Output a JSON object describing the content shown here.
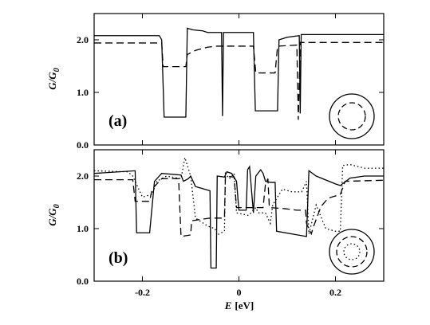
{
  "colors": {
    "ink": "#000000",
    "background": "#ffffff"
  },
  "chart_data": [
    {
      "type": "line",
      "panel_label": "(a)",
      "ylabel_main": "G/G",
      "ylabel_sub": "0",
      "xlim": [
        -0.3,
        0.3
      ],
      "ylim": [
        0.0,
        2.5
      ],
      "yticks": [
        0.0,
        1.0,
        2.0
      ],
      "ytick_labels": [
        "0.0",
        "1.0",
        "2.0"
      ],
      "xticks": [
        -0.2,
        0.0,
        0.2
      ],
      "xtick_labels": [],
      "inset": "two-concentric-shells",
      "series": [
        {
          "style": "solid",
          "points": [
            [
              -0.3,
              2.08
            ],
            [
              -0.165,
              2.08
            ],
            [
              -0.16,
              2.0
            ],
            [
              -0.155,
              0.53
            ],
            [
              -0.11,
              0.53
            ],
            [
              -0.107,
              2.22
            ],
            [
              -0.095,
              2.19
            ],
            [
              -0.075,
              2.17
            ],
            [
              -0.065,
              2.14
            ],
            [
              -0.04,
              2.14
            ],
            [
              -0.036,
              2.14
            ],
            [
              -0.034,
              0.55
            ],
            [
              -0.032,
              2.14
            ],
            [
              0.03,
              2.14
            ],
            [
              0.034,
              0.65
            ],
            [
              0.08,
              0.65
            ],
            [
              0.083,
              2.0
            ],
            [
              0.1,
              2.05
            ],
            [
              0.125,
              2.08
            ],
            [
              0.127,
              0.6
            ],
            [
              0.129,
              2.1
            ],
            [
              0.15,
              2.1
            ],
            [
              0.3,
              2.1
            ]
          ]
        },
        {
          "style": "dashed",
          "points": [
            [
              -0.3,
              1.94
            ],
            [
              -0.16,
              1.94
            ],
            [
              -0.157,
              1.49
            ],
            [
              -0.11,
              1.49
            ],
            [
              -0.107,
              1.72
            ],
            [
              -0.09,
              1.8
            ],
            [
              -0.065,
              1.86
            ],
            [
              -0.045,
              1.88
            ],
            [
              0.03,
              1.88
            ],
            [
              0.035,
              1.37
            ],
            [
              0.075,
              1.37
            ],
            [
              0.08,
              1.88
            ],
            [
              0.12,
              1.9
            ],
            [
              0.123,
              0.48
            ],
            [
              0.127,
              1.95
            ],
            [
              0.3,
              1.95
            ]
          ]
        }
      ]
    },
    {
      "type": "line",
      "panel_label": "(b)",
      "ylabel_main": "G/G",
      "ylabel_sub": "0",
      "xlabel_main": "E",
      "xlabel_unit": "[eV]",
      "xlim": [
        -0.3,
        0.3
      ],
      "ylim": [
        0.0,
        2.5
      ],
      "yticks": [
        0.0,
        1.0,
        2.0
      ],
      "ytick_labels": [
        "0.0",
        "1.0",
        "2.0"
      ],
      "xticks": [
        -0.2,
        0.0,
        0.2
      ],
      "xtick_labels": [
        "-0.2",
        "0",
        "0.2"
      ],
      "inset": "three-concentric-shells",
      "series": [
        {
          "style": "solid",
          "points": [
            [
              -0.3,
              2.05
            ],
            [
              -0.215,
              2.1
            ],
            [
              -0.212,
              0.92
            ],
            [
              -0.185,
              0.92
            ],
            [
              -0.175,
              1.9
            ],
            [
              -0.16,
              2.05
            ],
            [
              -0.12,
              2.02
            ],
            [
              -0.115,
              1.9
            ],
            [
              -0.105,
              1.95
            ],
            [
              -0.1,
              2.0
            ],
            [
              -0.09,
              1.8
            ],
            [
              -0.06,
              1.72
            ],
            [
              -0.058,
              0.25
            ],
            [
              -0.047,
              0.25
            ],
            [
              -0.045,
              2.0
            ],
            [
              -0.03,
              1.98
            ],
            [
              -0.025,
              2.08
            ],
            [
              -0.015,
              2.05
            ],
            [
              -0.005,
              1.9
            ],
            [
              0.0,
              1.35
            ],
            [
              0.015,
              1.35
            ],
            [
              0.018,
              2.12
            ],
            [
              0.022,
              2.18
            ],
            [
              0.03,
              1.3
            ],
            [
              0.035,
              2.0
            ],
            [
              0.045,
              2.12
            ],
            [
              0.05,
              2.05
            ],
            [
              0.055,
              1.9
            ],
            [
              0.065,
              1.88
            ],
            [
              0.075,
              1.88
            ],
            [
              0.078,
              0.95
            ],
            [
              0.14,
              0.85
            ],
            [
              0.145,
              2.1
            ],
            [
              0.16,
              2.0
            ],
            [
              0.2,
              1.85
            ],
            [
              0.21,
              1.82
            ],
            [
              0.23,
              1.96
            ],
            [
              0.26,
              2.0
            ],
            [
              0.3,
              2.0
            ]
          ]
        },
        {
          "style": "dashed",
          "points": [
            [
              -0.3,
              1.93
            ],
            [
              -0.22,
              1.93
            ],
            [
              -0.215,
              1.52
            ],
            [
              -0.185,
              1.52
            ],
            [
              -0.18,
              1.75
            ],
            [
              -0.16,
              1.95
            ],
            [
              -0.125,
              1.95
            ],
            [
              -0.12,
              0.85
            ],
            [
              -0.1,
              0.88
            ],
            [
              -0.098,
              1.15
            ],
            [
              -0.06,
              1.2
            ],
            [
              -0.03,
              1.2
            ],
            [
              -0.028,
              2.0
            ],
            [
              -0.01,
              1.98
            ],
            [
              -0.005,
              1.4
            ],
            [
              0.05,
              1.4
            ],
            [
              0.055,
              1.85
            ],
            [
              0.06,
              1.95
            ],
            [
              0.063,
              1.4
            ],
            [
              0.095,
              1.38
            ],
            [
              0.12,
              1.35
            ],
            [
              0.138,
              1.35
            ],
            [
              0.14,
              1.1
            ],
            [
              0.15,
              0.9
            ],
            [
              0.155,
              1.05
            ],
            [
              0.17,
              1.42
            ],
            [
              0.185,
              1.58
            ],
            [
              0.21,
              1.65
            ],
            [
              0.22,
              1.9
            ],
            [
              0.3,
              1.92
            ]
          ]
        },
        {
          "style": "dotted",
          "points": [
            [
              -0.3,
              2.1
            ],
            [
              -0.23,
              2.08
            ],
            [
              -0.22,
              2.0
            ],
            [
              -0.2,
              1.6
            ],
            [
              -0.18,
              1.65
            ],
            [
              -0.17,
              1.9
            ],
            [
              -0.15,
              2.0
            ],
            [
              -0.12,
              1.95
            ],
            [
              -0.112,
              2.35
            ],
            [
              -0.1,
              2.0
            ],
            [
              -0.09,
              1.2
            ],
            [
              -0.065,
              1.05
            ],
            [
              -0.05,
              1.0
            ],
            [
              -0.045,
              0.88
            ],
            [
              -0.03,
              0.95
            ],
            [
              -0.028,
              2.05
            ],
            [
              -0.02,
              1.95
            ],
            [
              -0.01,
              2.05
            ],
            [
              -0.005,
              1.3
            ],
            [
              0.02,
              1.25
            ],
            [
              0.025,
              1.3
            ],
            [
              0.035,
              1.4
            ],
            [
              0.04,
              1.3
            ],
            [
              0.055,
              1.3
            ],
            [
              0.065,
              1.1
            ],
            [
              0.07,
              1.45
            ],
            [
              0.09,
              1.75
            ],
            [
              0.11,
              1.7
            ],
            [
              0.13,
              1.7
            ],
            [
              0.14,
              1.9
            ],
            [
              0.145,
              0.9
            ],
            [
              0.16,
              1.45
            ],
            [
              0.18,
              1.0
            ],
            [
              0.2,
              0.95
            ],
            [
              0.21,
              0.95
            ],
            [
              0.215,
              2.2
            ],
            [
              0.23,
              2.22
            ],
            [
              0.26,
              2.15
            ],
            [
              0.3,
              2.15
            ]
          ]
        }
      ]
    }
  ]
}
